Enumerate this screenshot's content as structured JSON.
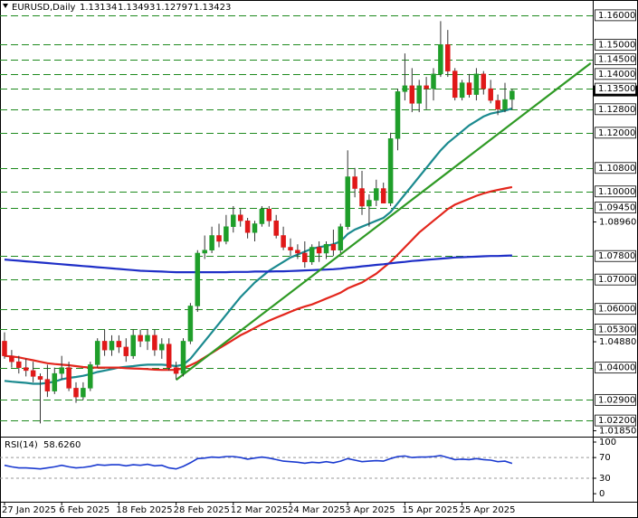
{
  "chart_data": [
    {
      "type": "candlestick",
      "title": "EURUSD,Daily",
      "header_values": [
        1.13134,
        1.13493,
        1.12797,
        1.13423
      ],
      "categories": [
        "27 Jan 2025",
        null,
        null,
        null,
        null,
        null,
        null,
        null,
        "6 Feb 2025",
        null,
        null,
        null,
        null,
        null,
        null,
        null,
        "18 Feb 2025",
        null,
        null,
        null,
        null,
        null,
        null,
        null,
        "28 Feb 2025",
        null,
        null,
        null,
        null,
        null,
        null,
        null,
        "12 Mar 2025",
        null,
        null,
        null,
        null,
        null,
        null,
        null,
        "24 Mar 2025",
        null,
        null,
        null,
        null,
        null,
        null,
        null,
        "3 Apr 2025",
        null,
        null,
        null,
        null,
        null,
        null,
        null,
        "15 Apr 2025",
        null,
        null,
        null,
        null,
        null,
        null,
        null,
        "25 Apr 2025",
        null,
        null,
        null,
        null,
        null,
        null,
        null
      ],
      "open": [
        1.049,
        1.044,
        1.042,
        1.04,
        1.039,
        1.037,
        1.036,
        1.032,
        1.038,
        1.04,
        1.033,
        1.03,
        1.033,
        1.041,
        1.049,
        1.046,
        1.049,
        1.047,
        1.044,
        1.051,
        1.049,
        1.051,
        1.046,
        1.048,
        1.04,
        1.038,
        1.049,
        1.061,
        1.079,
        1.08,
        1.085,
        1.083,
        1.088,
        1.092,
        1.09,
        1.086,
        1.089,
        1.094,
        1.09,
        1.085,
        1.081,
        1.08,
        1.079,
        1.076,
        1.081,
        1.079,
        1.082,
        1.08,
        1.088,
        1.105,
        1.101,
        1.095,
        1.097,
        1.101,
        1.096,
        1.118,
        1.134,
        1.136,
        1.13,
        1.136,
        1.135,
        1.14,
        1.15,
        1.141,
        1.132,
        1.137,
        1.133,
        1.14,
        1.135,
        1.131,
        1.128,
        1.13134
      ],
      "high": [
        1.052,
        1.046,
        1.044,
        1.043,
        1.042,
        1.038,
        1.041,
        1.04,
        1.044,
        1.042,
        1.035,
        1.035,
        1.042,
        1.05,
        1.053,
        1.051,
        1.051,
        1.05,
        1.053,
        1.053,
        1.053,
        1.053,
        1.05,
        1.05,
        1.042,
        1.05,
        1.062,
        1.08,
        1.085,
        1.088,
        1.089,
        1.092,
        1.095,
        1.094,
        1.091,
        1.09,
        1.095,
        1.095,
        1.092,
        1.088,
        1.084,
        1.082,
        1.083,
        1.082,
        1.083,
        1.083,
        1.087,
        1.089,
        1.114,
        1.108,
        1.107,
        1.099,
        1.104,
        1.103,
        1.12,
        1.135,
        1.147,
        1.142,
        1.138,
        1.139,
        1.142,
        1.158,
        1.155,
        1.142,
        1.138,
        1.14,
        1.142,
        1.141,
        1.138,
        1.133,
        1.137,
        1.13493
      ],
      "low": [
        1.043,
        1.04,
        1.038,
        1.037,
        1.035,
        1.021,
        1.03,
        1.031,
        1.036,
        1.032,
        1.028,
        1.029,
        1.032,
        1.04,
        1.044,
        1.044,
        1.045,
        1.042,
        1.043,
        1.047,
        1.046,
        1.044,
        1.043,
        1.039,
        1.036,
        1.037,
        1.048,
        1.059,
        1.077,
        1.079,
        1.081,
        1.082,
        1.086,
        1.088,
        1.084,
        1.083,
        1.088,
        1.088,
        1.084,
        1.08,
        1.078,
        1.077,
        1.074,
        1.075,
        1.076,
        1.077,
        1.078,
        1.079,
        1.087,
        1.098,
        1.092,
        1.088,
        1.095,
        1.096,
        1.095,
        1.114,
        1.131,
        1.127,
        1.127,
        1.128,
        1.131,
        1.139,
        1.139,
        1.131,
        1.131,
        1.132,
        1.131,
        1.133,
        1.13,
        1.126,
        1.127,
        1.12797
      ],
      "close": [
        1.044,
        1.042,
        1.04,
        1.039,
        1.037,
        1.036,
        1.032,
        1.038,
        1.04,
        1.033,
        1.03,
        1.033,
        1.041,
        1.049,
        1.046,
        1.049,
        1.047,
        1.044,
        1.051,
        1.049,
        1.051,
        1.046,
        1.048,
        1.04,
        1.038,
        1.049,
        1.061,
        1.079,
        1.08,
        1.085,
        1.083,
        1.088,
        1.092,
        1.09,
        1.086,
        1.089,
        1.094,
        1.09,
        1.085,
        1.081,
        1.08,
        1.079,
        1.076,
        1.081,
        1.079,
        1.082,
        1.08,
        1.088,
        1.105,
        1.101,
        1.095,
        1.097,
        1.101,
        1.096,
        1.118,
        1.134,
        1.136,
        1.13,
        1.136,
        1.135,
        1.14,
        1.15,
        1.141,
        1.132,
        1.137,
        1.133,
        1.14,
        1.135,
        1.131,
        1.128,
        1.1313,
        1.13423
      ],
      "up_color": "#1f9e2a",
      "down_color": "#e01818",
      "series": [
        {
          "color": "#1b8a8f",
          "values": [
            1.0355,
            1.0352,
            1.035,
            1.0348,
            1.0345,
            1.0345,
            1.0348,
            1.0352,
            1.036,
            1.0365,
            1.0368,
            1.0372,
            1.0378,
            1.0385,
            1.039,
            1.0395,
            1.04,
            1.0403,
            1.0405,
            1.0408,
            1.041,
            1.041,
            1.041,
            1.0408,
            1.0405,
            1.041,
            1.043,
            1.046,
            1.049,
            1.052,
            1.055,
            1.058,
            1.061,
            1.064,
            1.0665,
            1.069,
            1.071,
            1.073,
            1.0745,
            1.076,
            1.0775,
            1.0785,
            1.0795,
            1.0805,
            1.081,
            1.0815,
            1.082,
            1.083,
            1.0855,
            1.087,
            1.088,
            1.089,
            1.09,
            1.091,
            1.093,
            1.096,
            1.099,
            1.102,
            1.105,
            1.108,
            1.111,
            1.114,
            1.1165,
            1.1185,
            1.1205,
            1.1225,
            1.124,
            1.1255,
            1.1265,
            1.127,
            1.1275,
            1.1283
          ]
        },
        {
          "color": "#e3261c",
          "values": [
            1.044,
            1.0438,
            1.0435,
            1.043,
            1.0425,
            1.042,
            1.0415,
            1.0412,
            1.041,
            1.0408,
            1.0405,
            1.0402,
            1.04,
            1.04,
            1.04,
            1.04,
            1.04,
            1.0398,
            1.0397,
            1.0396,
            1.0395,
            1.0393,
            1.0392,
            1.0392,
            1.0392,
            1.0398,
            1.0408,
            1.042,
            1.0435,
            1.045,
            1.0465,
            1.048,
            1.0495,
            1.051,
            1.0522,
            1.0535,
            1.0548,
            1.056,
            1.057,
            1.058,
            1.059,
            1.06,
            1.0608,
            1.0615,
            1.0625,
            1.0635,
            1.0645,
            1.0655,
            1.067,
            1.068,
            1.069,
            1.0705,
            1.072,
            1.074,
            1.076,
            1.0785,
            1.081,
            1.0835,
            1.086,
            1.088,
            1.09,
            1.092,
            1.094,
            1.0955,
            1.0965,
            1.0975,
            1.0985,
            1.0993,
            1.1,
            1.1005,
            1.101,
            1.1015
          ]
        },
        {
          "color": "#1f2fc7",
          "values": [
            1.0768,
            1.0766,
            1.0764,
            1.0762,
            1.076,
            1.0758,
            1.0756,
            1.0754,
            1.0752,
            1.075,
            1.0748,
            1.0746,
            1.0744,
            1.0742,
            1.074,
            1.0738,
            1.0736,
            1.0734,
            1.0732,
            1.073,
            1.0729,
            1.0728,
            1.0727,
            1.0726,
            1.0725,
            1.0725,
            1.0725,
            1.0725,
            1.0725,
            1.0725,
            1.0725,
            1.0725,
            1.0726,
            1.0726,
            1.0726,
            1.0727,
            1.0727,
            1.0727,
            1.0728,
            1.0728,
            1.0729,
            1.073,
            1.0731,
            1.0732,
            1.0733,
            1.0734,
            1.0735,
            1.0737,
            1.074,
            1.0742,
            1.0745,
            1.0747,
            1.075,
            1.0752,
            1.0755,
            1.0758,
            1.076,
            1.0763,
            1.0765,
            1.0767,
            1.0769,
            1.0771,
            1.0773,
            1.0775,
            1.0776,
            1.0777,
            1.0778,
            1.0779,
            1.078,
            1.078,
            1.0781,
            1.0782
          ]
        }
      ],
      "trendline": {
        "color": "#2f9a25",
        "x": [
          24,
          82
        ],
        "values": [
          1.0358,
          1.1437
        ]
      },
      "ylim": [
        1.0168,
        1.1652
      ],
      "yticks": [
        {
          "value": 1.0896,
          "label": "1.08960"
        },
        {
          "value": 1.0488,
          "label": "1.04880"
        },
        {
          "value": 1.0185,
          "label": "1.01850"
        }
      ],
      "level_color": "#1e8a1e",
      "levels": [
        {
          "value": 1.16,
          "label": "1.16000"
        },
        {
          "value": 1.15,
          "label": "1.15000"
        },
        {
          "value": 1.145,
          "label": "1.14500"
        },
        {
          "value": 1.14,
          "label": "1.14000"
        },
        {
          "value": 1.135,
          "label": "1.13500"
        },
        {
          "value": 1.128,
          "label": "1.12800"
        },
        {
          "value": 1.12,
          "label": "1.12000"
        },
        {
          "value": 1.108,
          "label": "1.10800"
        },
        {
          "value": 1.1,
          "label": "1.10000"
        },
        {
          "value": 1.0945,
          "label": "1.09450"
        },
        {
          "value": 1.078,
          "label": "1.07800"
        },
        {
          "value": 1.07,
          "label": "1.07000"
        },
        {
          "value": 1.06,
          "label": "1.06000"
        },
        {
          "value": 1.053,
          "label": "1.05300"
        },
        {
          "value": 1.04,
          "label": "1.04000"
        },
        {
          "value": 1.029,
          "label": "1.02900"
        },
        {
          "value": 1.022,
          "label": "1.02200"
        }
      ]
    },
    {
      "type": "line",
      "title": "RSI(14)",
      "current_value": {
        "value": 58.626,
        "label": "58.6260"
      },
      "color": "#1a3ad0",
      "values": [
        55,
        52,
        50,
        50,
        49,
        48,
        50,
        52,
        55,
        52,
        50,
        51,
        53,
        56,
        55,
        56,
        56,
        54,
        56,
        55,
        57,
        54,
        55,
        50,
        48,
        53,
        60,
        68,
        69,
        71,
        70,
        72,
        72,
        70,
        67,
        69,
        71,
        69,
        66,
        63,
        62,
        61,
        59,
        61,
        60,
        62,
        60,
        63,
        68,
        65,
        62,
        63,
        64,
        63,
        68,
        72,
        73,
        70,
        71,
        71,
        72,
        74,
        70,
        66,
        67,
        66,
        68,
        66,
        65,
        62,
        63,
        58.626
      ],
      "ylim": [
        -12,
        107
      ],
      "yticks": [
        100,
        70,
        30,
        0
      ],
      "dashed_ticks": [
        70,
        30
      ]
    }
  ]
}
